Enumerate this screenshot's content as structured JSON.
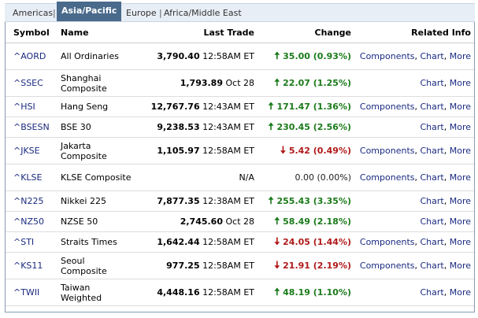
{
  "tabs": {
    "americas": "Americas",
    "asia": "Asia/Pacific",
    "europe": "Europe",
    "africa": "Africa/Middle East"
  },
  "headers": {
    "symbol": "Symbol",
    "name": "Name",
    "last_trade": "Last Trade",
    "change": "Change",
    "related": "Related Info"
  },
  "colors": {
    "up": "#1a7a1a",
    "down": "#b01818",
    "link": "#1a2a80",
    "active_tab": "#4a6a8c"
  },
  "rows": [
    {
      "symbol": "^AORD",
      "name": "All Ordinaries",
      "price": "3,790.40",
      "time": "12:58AM ET",
      "dir": "up",
      "change": "35.00 (0.93%)",
      "links": [
        "Components",
        "Chart",
        "More"
      ]
    },
    {
      "symbol": "^SSEC",
      "name": "Shanghai Composite",
      "price": "1,793.89",
      "time": "Oct 28",
      "dir": "up",
      "change": "22.07 (1.25%)",
      "links": [
        "Chart",
        "More"
      ]
    },
    {
      "symbol": "^HSI",
      "name": "Hang Seng",
      "price": "12,767.76",
      "time": "12:43AM ET",
      "dir": "up",
      "change": "171.47 (1.36%)",
      "links": [
        "Components",
        "Chart",
        "More"
      ]
    },
    {
      "symbol": "^BSESN",
      "name": "BSE 30",
      "price": "9,238.53",
      "time": "12:43AM ET",
      "dir": "up",
      "change": "230.45 (2.56%)",
      "links": [
        "Chart",
        "More"
      ]
    },
    {
      "symbol": "^JKSE",
      "name": "Jakarta Composite",
      "price": "1,105.97",
      "time": "12:58AM ET",
      "dir": "down",
      "change": "5.42 (0.49%)",
      "links": [
        "Components",
        "Chart",
        "More"
      ]
    },
    {
      "symbol": "^KLSE",
      "name": "KLSE Composite",
      "price": "",
      "time": "N/A",
      "dir": "flat",
      "change": "0.00 (0.00%)",
      "links": [
        "Components",
        "Chart",
        "More"
      ]
    },
    {
      "symbol": "^N225",
      "name": "Nikkei 225",
      "price": "7,877.35",
      "time": "12:38AM ET",
      "dir": "up",
      "change": "255.43 (3.35%)",
      "links": [
        "Chart",
        "More"
      ]
    },
    {
      "symbol": "^NZ50",
      "name": "NZSE 50",
      "price": "2,745.60",
      "time": "Oct 28",
      "dir": "up",
      "change": "58.49 (2.18%)",
      "links": [
        "Chart",
        "More"
      ]
    },
    {
      "symbol": "^STI",
      "name": "Straits Times",
      "price": "1,642.44",
      "time": "12:58AM ET",
      "dir": "down",
      "change": "24.05 (1.44%)",
      "links": [
        "Components",
        "Chart",
        "More"
      ]
    },
    {
      "symbol": "^KS11",
      "name": "Seoul Composite",
      "price": "977.25",
      "time": "12:58AM ET",
      "dir": "down",
      "change": "21.91 (2.19%)",
      "links": [
        "Components",
        "Chart",
        "More"
      ]
    },
    {
      "symbol": "^TWII",
      "name": "Taiwan Weighted",
      "price": "4,448.16",
      "time": "12:58AM ET",
      "dir": "up",
      "change": "48.19 (1.10%)",
      "links": [
        "Chart",
        "More"
      ]
    }
  ]
}
